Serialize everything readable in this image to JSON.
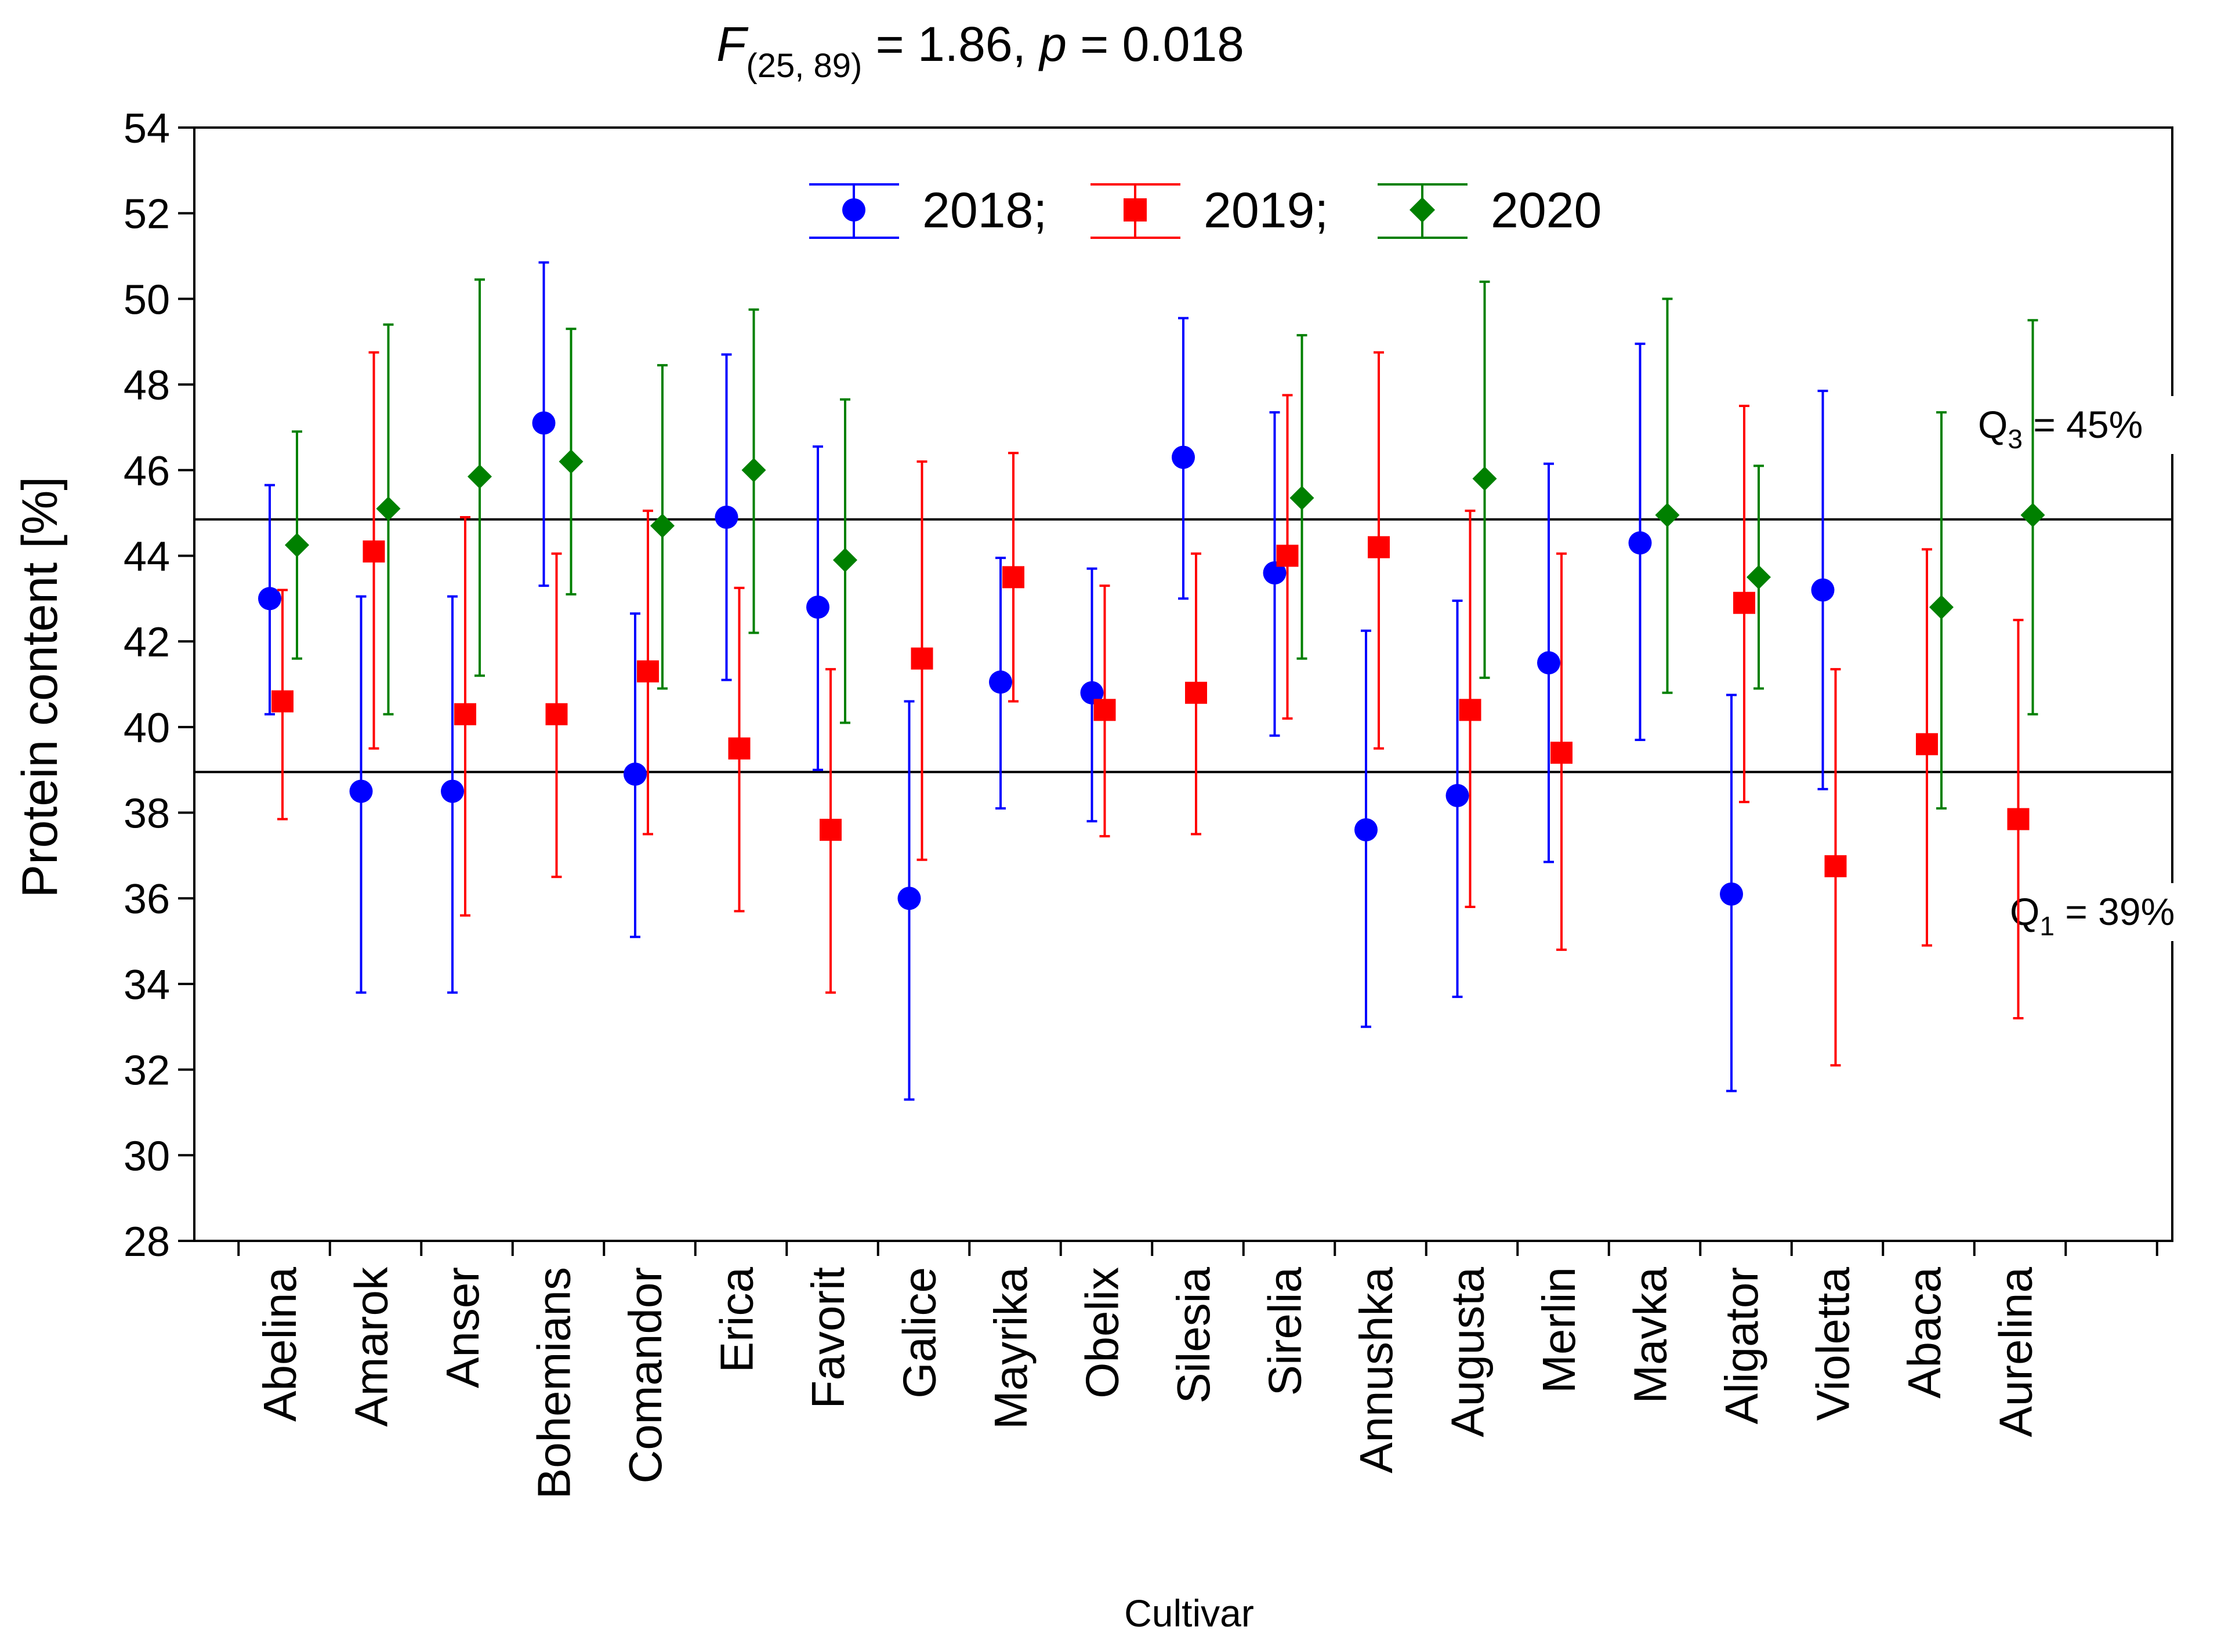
{
  "chart_data": {
    "type": "scatter",
    "title": {
      "f_symbol": "F",
      "df": "(25, 89)",
      "f_stat": " = 1.86, ",
      "p_symbol": "p",
      "p_val": " = 0.018"
    },
    "xlabel": "Cultivar",
    "ylabel": "Protein content [%]",
    "ylim": [
      28,
      54
    ],
    "yticks": [
      28,
      30,
      32,
      34,
      36,
      38,
      40,
      42,
      44,
      46,
      48,
      50,
      52,
      54
    ],
    "grid": false,
    "legend_position": "top-center",
    "legend_labels": [
      "2018;",
      "2019;",
      "2020"
    ],
    "categories": [
      "Abelina",
      "Amarok",
      "Anser",
      "Bohemians",
      "Comandor",
      "Erica",
      "Favorit",
      "Galice",
      "Mayrika",
      "Obelix",
      "Silesia",
      "Sirelia",
      "Annushka",
      "Augusta",
      "Merlin",
      "Mavka",
      "Aligator",
      "Violetta",
      "Abaca",
      "Aurelina"
    ],
    "series": [
      {
        "name": "2018",
        "color": "#0000ff",
        "marker": "circle",
        "mean": [
          43.0,
          38.5,
          38.5,
          47.1,
          38.9,
          44.9,
          42.8,
          36.0,
          41.05,
          40.8,
          46.3,
          43.6,
          37.6,
          38.4,
          41.5,
          44.3,
          36.1,
          43.2,
          null,
          null
        ],
        "low": [
          40.3,
          33.8,
          33.8,
          43.3,
          35.1,
          41.1,
          39.0,
          31.3,
          38.1,
          37.8,
          43.0,
          39.8,
          33.0,
          33.7,
          36.85,
          39.7,
          31.5,
          38.55,
          null,
          null
        ],
        "high": [
          45.65,
          43.05,
          43.05,
          50.85,
          42.65,
          48.7,
          46.55,
          40.6,
          43.95,
          43.7,
          49.55,
          47.35,
          42.25,
          42.95,
          46.15,
          48.95,
          40.75,
          47.85,
          null,
          null
        ]
      },
      {
        "name": "2019",
        "color": "#ff0000",
        "marker": "square",
        "mean": [
          40.6,
          44.1,
          40.3,
          40.3,
          41.3,
          39.5,
          37.6,
          41.6,
          43.5,
          40.4,
          40.8,
          44.0,
          44.2,
          40.4,
          39.4,
          null,
          42.9,
          36.75,
          39.6,
          37.85
        ],
        "low": [
          37.85,
          39.5,
          35.6,
          36.5,
          37.5,
          35.7,
          33.8,
          36.9,
          40.6,
          37.45,
          37.5,
          40.2,
          39.5,
          35.8,
          34.8,
          null,
          38.25,
          32.1,
          34.9,
          33.2
        ],
        "high": [
          43.2,
          48.75,
          44.9,
          44.05,
          45.05,
          43.25,
          41.35,
          46.2,
          46.4,
          43.3,
          44.05,
          47.75,
          48.75,
          45.05,
          44.05,
          null,
          47.5,
          41.35,
          44.15,
          42.5
        ]
      },
      {
        "name": "2020",
        "color": "#008000",
        "marker": "diamond",
        "mean": [
          44.25,
          45.1,
          45.85,
          46.2,
          44.7,
          46.0,
          43.9,
          null,
          null,
          null,
          null,
          45.35,
          null,
          45.8,
          null,
          44.95,
          43.5,
          null,
          42.8,
          44.95
        ],
        "low": [
          41.6,
          40.3,
          41.2,
          43.1,
          40.9,
          42.2,
          40.1,
          null,
          null,
          null,
          null,
          41.6,
          null,
          41.15,
          null,
          40.8,
          40.9,
          null,
          38.1,
          40.3
        ],
        "high": [
          46.9,
          49.4,
          50.45,
          49.3,
          48.45,
          49.75,
          47.65,
          null,
          null,
          null,
          null,
          49.15,
          null,
          50.4,
          null,
          50.0,
          46.1,
          null,
          47.35,
          49.5
        ]
      }
    ],
    "reference_lines": [
      {
        "value": 44.85,
        "label_main": "Q",
        "label_sub": "3",
        "label_rest": " = 45%"
      },
      {
        "value": 38.95,
        "label_main": "Q",
        "label_sub": "1",
        "label_rest": " = 39%"
      }
    ]
  }
}
